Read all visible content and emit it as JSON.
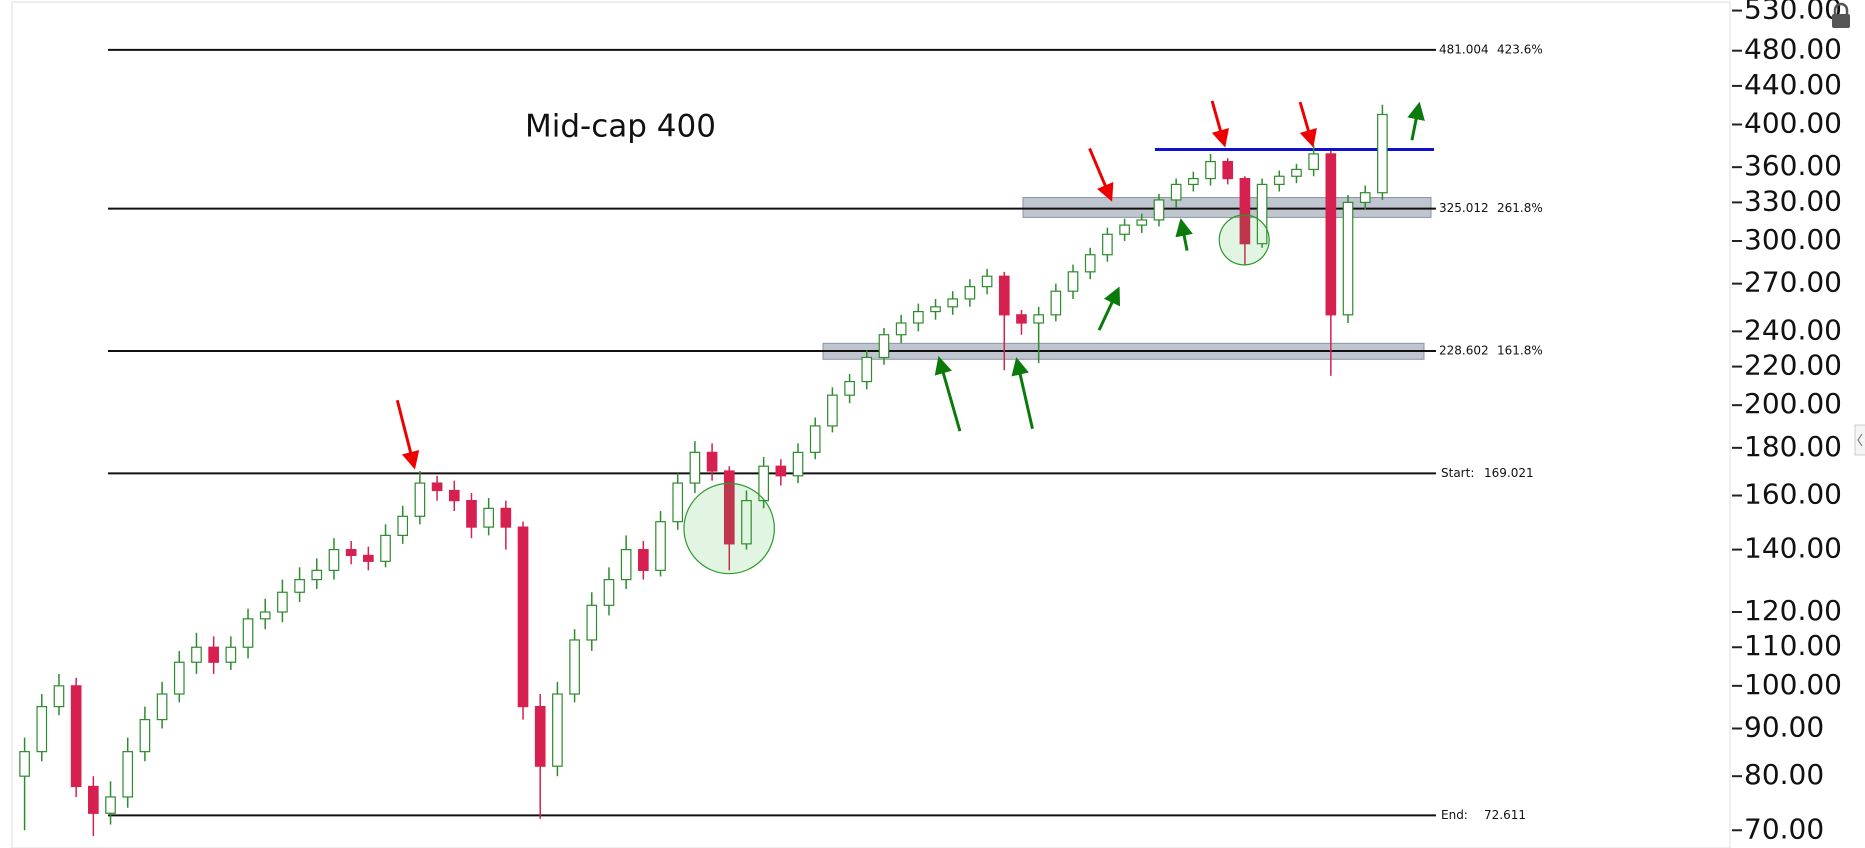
{
  "chart_data": {
    "type": "candlestick",
    "title": "Mid-cap 400",
    "log_scale": true,
    "ylim": [
      67,
      544
    ],
    "yticks": [
      {
        "value": 70,
        "label": "70.00"
      },
      {
        "value": 80,
        "label": "80.00"
      },
      {
        "value": 90,
        "label": "90.00"
      },
      {
        "value": 100,
        "label": "100.00"
      },
      {
        "value": 110,
        "label": "110.00"
      },
      {
        "value": 120,
        "label": "120.00"
      },
      {
        "value": 140,
        "label": "140.00"
      },
      {
        "value": 160,
        "label": "160.00"
      },
      {
        "value": 180,
        "label": "180.00"
      },
      {
        "value": 200,
        "label": "200.00"
      },
      {
        "value": 220,
        "label": "220.00"
      },
      {
        "value": 240,
        "label": "240.00"
      },
      {
        "value": 270,
        "label": "270.00"
      },
      {
        "value": 300,
        "label": "300.00"
      },
      {
        "value": 330,
        "label": "330.00"
      },
      {
        "value": 360,
        "label": "360.00"
      },
      {
        "value": 400,
        "label": "400.00"
      },
      {
        "value": 440,
        "label": "440.00"
      },
      {
        "value": 480,
        "label": "480.00"
      },
      {
        "value": 530,
        "label": "530.00"
      }
    ],
    "up_color": "#2e8b2e",
    "down_color": "#d6204f",
    "open": [
      80,
      85,
      95,
      100,
      78,
      73,
      76,
      85,
      92,
      98,
      106,
      110,
      106,
      110,
      118,
      120,
      126,
      130,
      133,
      140,
      138,
      136,
      145,
      152,
      165,
      162,
      158,
      148,
      155,
      148,
      95,
      82,
      98,
      112,
      122,
      130,
      140,
      133,
      150,
      165,
      178,
      170,
      142,
      158,
      172,
      168,
      178,
      190,
      205,
      212,
      225,
      238,
      245,
      252,
      255,
      260,
      268,
      275,
      250,
      245,
      250,
      265,
      278,
      290,
      305,
      312,
      316,
      332,
      345,
      350,
      365,
      350,
      298,
      345,
      352,
      358,
      372,
      250,
      330,
      338
    ],
    "high": [
      88,
      98,
      103,
      102,
      80,
      79,
      88,
      95,
      101,
      109,
      114,
      113,
      113,
      121,
      124,
      130,
      134,
      137,
      144,
      143,
      141,
      149,
      156,
      170,
      168,
      166,
      161,
      159,
      158,
      150,
      98,
      101,
      115,
      126,
      134,
      145,
      143,
      154,
      169,
      183,
      182,
      172,
      162,
      176,
      175,
      182,
      194,
      209,
      216,
      229,
      242,
      250,
      257,
      260,
      265,
      273,
      280,
      278,
      253,
      255,
      270,
      283,
      295,
      310,
      317,
      321,
      337,
      350,
      356,
      372,
      368,
      352,
      350,
      357,
      363,
      380,
      375,
      336,
      344,
      420
    ],
    "low": [
      70,
      83,
      93,
      76,
      69,
      71,
      74,
      83,
      90,
      96,
      103,
      103,
      104,
      107,
      115,
      117,
      123,
      127,
      130,
      135,
      133,
      134,
      142,
      149,
      158,
      154,
      144,
      145,
      140,
      92,
      72,
      80,
      96,
      109,
      119,
      127,
      130,
      131,
      147,
      161,
      166,
      133,
      140,
      155,
      164,
      165,
      175,
      187,
      201,
      208,
      221,
      233,
      240,
      247,
      250,
      255,
      263,
      218,
      238,
      222,
      246,
      260,
      273,
      285,
      300,
      306,
      311,
      326,
      339,
      344,
      345,
      283,
      295,
      339,
      346,
      352,
      215,
      245,
      324,
      332
    ],
    "close": [
      85,
      95,
      100,
      78,
      73,
      76,
      85,
      92,
      98,
      106,
      110,
      106,
      110,
      118,
      120,
      126,
      130,
      133,
      140,
      138,
      136,
      145,
      152,
      165,
      162,
      158,
      148,
      155,
      148,
      95,
      82,
      98,
      112,
      122,
      130,
      140,
      133,
      150,
      165,
      178,
      170,
      142,
      158,
      172,
      168,
      178,
      190,
      205,
      212,
      225,
      238,
      245,
      252,
      255,
      260,
      268,
      275,
      250,
      245,
      250,
      265,
      278,
      290,
      305,
      312,
      316,
      332,
      345,
      350,
      365,
      350,
      298,
      345,
      352,
      358,
      372,
      250,
      330,
      338,
      410
    ],
    "levels": [
      {
        "value": 481.004,
        "ratio": {
          "value": 423.6,
          "label": "423.6%"
        }
      },
      {
        "value": 325.012,
        "ratio": {
          "value": 261.8,
          "label": "261.8%"
        }
      },
      {
        "value": 228.602,
        "ratio": {
          "value": 161.8,
          "label": "161.8%"
        }
      },
      {
        "name": "Start:",
        "value": 169.021
      },
      {
        "name": "End:",
        "value": 72.611
      }
    ],
    "zones": [
      {
        "low": 318,
        "high": 334
      },
      {
        "low": 224,
        "high": 233
      }
    ],
    "resistance": {
      "value": 376,
      "color": "#1010d0"
    }
  }
}
